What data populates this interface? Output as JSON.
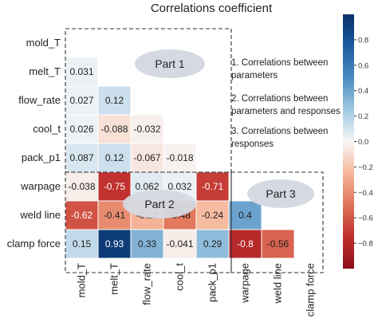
{
  "chart_data": {
    "type": "heatmap",
    "title": "Correlations coefficient",
    "variables": [
      "mold_T",
      "melt_T",
      "flow_rate",
      "cool_t",
      "pack_p1",
      "warpage",
      "weld line",
      "clamp force"
    ],
    "matrix": [
      [
        null,
        null,
        null,
        null,
        null,
        null,
        null,
        null
      ],
      [
        0.031,
        null,
        null,
        null,
        null,
        null,
        null,
        null
      ],
      [
        0.027,
        0.12,
        null,
        null,
        null,
        null,
        null,
        null
      ],
      [
        0.026,
        -0.088,
        -0.032,
        null,
        null,
        null,
        null,
        null
      ],
      [
        0.087,
        0.12,
        -0.067,
        -0.018,
        null,
        null,
        null,
        null
      ],
      [
        -0.038,
        -0.75,
        0.062,
        0.032,
        -0.71,
        null,
        null,
        null
      ],
      [
        -0.62,
        -0.41,
        -0.27,
        -0.48,
        -0.24,
        0.4,
        null,
        null
      ],
      [
        0.15,
        0.93,
        0.33,
        -0.041,
        0.29,
        -0.8,
        -0.56,
        null
      ]
    ],
    "colorbar": {
      "range": [
        -1,
        1
      ],
      "ticks": [
        0.8,
        0.6,
        0.4,
        0.2,
        0.0,
        -0.2,
        -0.4,
        -0.6,
        -0.8
      ],
      "tick_labels": [
        "0.8",
        "0.6",
        "0.4",
        "0.2",
        "0.0",
        "−0.2",
        "−0.4",
        "−0.6",
        "−0.8"
      ],
      "colors": {
        "negative": "#a50f15",
        "neutral": "#f7f7f7",
        "positive": "#08306b"
      }
    },
    "annotations": [
      {
        "name": "part-1-label",
        "text": "Part  1"
      },
      {
        "name": "part-2-label",
        "text": "Part 2"
      },
      {
        "name": "part-3-label",
        "text": "Part 3"
      }
    ],
    "notes": [
      "1. Correlations between",
      "parameters",
      "2. Correlations between",
      "parameters and responses",
      "3. Correlations between",
      "responses"
    ]
  }
}
